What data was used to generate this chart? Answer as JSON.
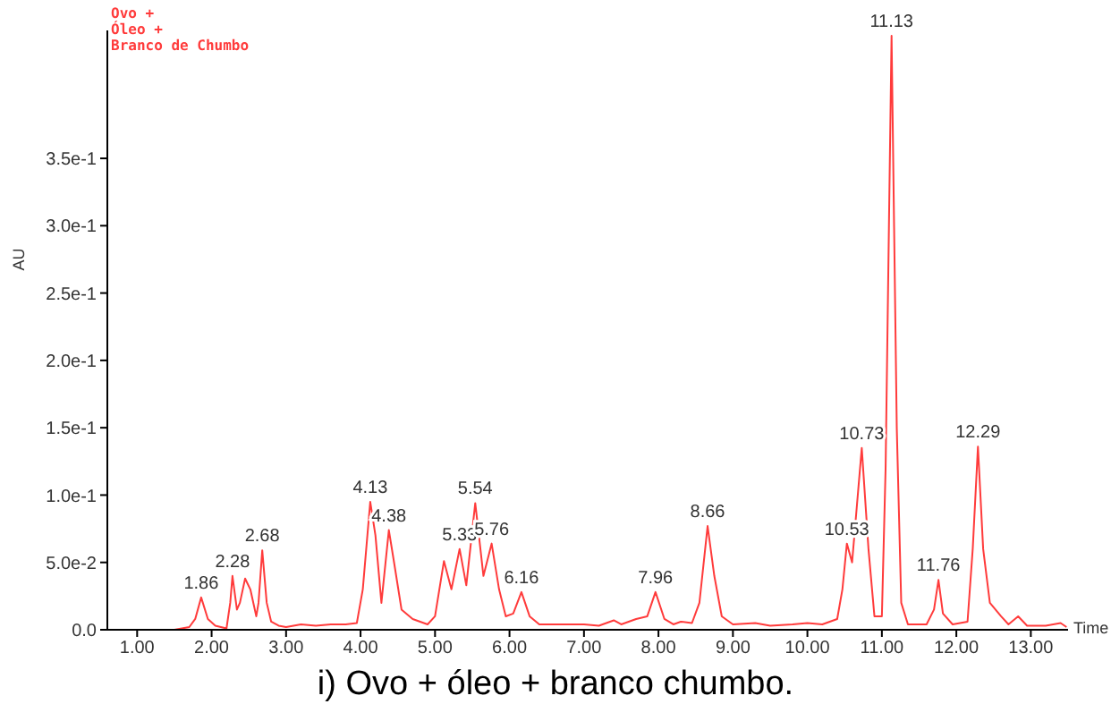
{
  "chart_data": {
    "type": "line",
    "title": "i) Ovo + óleo + branco chumbo.",
    "xlabel": "Time",
    "ylabel": "AU",
    "xlim": [
      0.6,
      13.5
    ],
    "ylim": [
      0,
      0.445
    ],
    "xticks": [
      {
        "value": 1,
        "label": "1.00"
      },
      {
        "value": 2,
        "label": "2.00"
      },
      {
        "value": 3,
        "label": "3.00"
      },
      {
        "value": 4,
        "label": "4.00"
      },
      {
        "value": 5,
        "label": "5.00"
      },
      {
        "value": 6,
        "label": "6.00"
      },
      {
        "value": 7,
        "label": "7.00"
      },
      {
        "value": 8,
        "label": "8.00"
      },
      {
        "value": 9,
        "label": "9.00"
      },
      {
        "value": 10,
        "label": "10.00"
      },
      {
        "value": 11,
        "label": "11.00"
      },
      {
        "value": 12,
        "label": "12.00"
      },
      {
        "value": 13,
        "label": "13.00"
      }
    ],
    "yticks": [
      {
        "value": 0,
        "label": "0.0"
      },
      {
        "value": 0.05,
        "label": "5.0e-2"
      },
      {
        "value": 0.1,
        "label": "1.0e-1"
      },
      {
        "value": 0.15,
        "label": "1.5e-1"
      },
      {
        "value": 0.2,
        "label": "2.0e-1"
      },
      {
        "value": 0.25,
        "label": "2.5e-1"
      },
      {
        "value": 0.3,
        "label": "3.0e-1"
      },
      {
        "value": 0.35,
        "label": "3.5e-1"
      }
    ],
    "grid": false,
    "legend": false,
    "marker": "none",
    "line_style": "solid",
    "series": [
      {
        "name": "Ovo +\nÓleo +\nBranco de Chumbo",
        "color": "#ff3b3b",
        "x": [
          0.6,
          1.0,
          1.5,
          1.7,
          1.78,
          1.86,
          1.95,
          2.05,
          2.2,
          2.25,
          2.28,
          2.34,
          2.38,
          2.45,
          2.52,
          2.6,
          2.63,
          2.68,
          2.74,
          2.8,
          2.9,
          3.0,
          3.2,
          3.4,
          3.6,
          3.8,
          3.95,
          4.03,
          4.13,
          4.2,
          4.28,
          4.38,
          4.45,
          4.55,
          4.7,
          4.9,
          5.0,
          5.12,
          5.22,
          5.33,
          5.42,
          5.54,
          5.65,
          5.76,
          5.86,
          5.95,
          6.05,
          6.16,
          6.27,
          6.4,
          6.6,
          7.0,
          7.2,
          7.4,
          7.5,
          7.7,
          7.85,
          7.96,
          8.08,
          8.2,
          8.3,
          8.45,
          8.55,
          8.66,
          8.75,
          8.85,
          9.0,
          9.3,
          9.5,
          9.8,
          10.0,
          10.2,
          10.4,
          10.47,
          10.53,
          10.6,
          10.73,
          10.82,
          10.9,
          11.0,
          11.05,
          11.13,
          11.2,
          11.26,
          11.35,
          11.6,
          11.7,
          11.76,
          11.82,
          11.95,
          12.15,
          12.22,
          12.29,
          12.36,
          12.45,
          12.6,
          12.7,
          12.83,
          12.95,
          13.2,
          13.4,
          13.48
        ],
        "values": [
          0,
          0,
          0,
          0.002,
          0.008,
          0.024,
          0.008,
          0.003,
          0.001,
          0.02,
          0.04,
          0.015,
          0.02,
          0.038,
          0.03,
          0.01,
          0.02,
          0.059,
          0.02,
          0.006,
          0.003,
          0.002,
          0.004,
          0.003,
          0.004,
          0.004,
          0.005,
          0.03,
          0.095,
          0.07,
          0.02,
          0.074,
          0.05,
          0.015,
          0.008,
          0.004,
          0.01,
          0.051,
          0.03,
          0.06,
          0.033,
          0.094,
          0.04,
          0.064,
          0.03,
          0.01,
          0.012,
          0.028,
          0.01,
          0.004,
          0.004,
          0.004,
          0.003,
          0.007,
          0.004,
          0.008,
          0.01,
          0.028,
          0.008,
          0.004,
          0.006,
          0.005,
          0.02,
          0.077,
          0.04,
          0.01,
          0.004,
          0.005,
          0.003,
          0.004,
          0.005,
          0.004,
          0.008,
          0.03,
          0.064,
          0.05,
          0.135,
          0.06,
          0.01,
          0.01,
          0.12,
          0.441,
          0.15,
          0.02,
          0.004,
          0.004,
          0.015,
          0.037,
          0.012,
          0.004,
          0.006,
          0.06,
          0.136,
          0.06,
          0.02,
          0.01,
          0.004,
          0.01,
          0.003,
          0.003,
          0.005,
          0.002
        ]
      }
    ],
    "annotations": [
      {
        "text": "1.86",
        "x": 1.86,
        "y": 0.024
      },
      {
        "text": "2.28",
        "x": 2.28,
        "y": 0.04
      },
      {
        "text": "2.68",
        "x": 2.68,
        "y": 0.059
      },
      {
        "text": "4.13",
        "x": 4.13,
        "y": 0.095
      },
      {
        "text": "4.38",
        "x": 4.38,
        "y": 0.074
      },
      {
        "text": "5.33",
        "x": 5.33,
        "y": 0.06
      },
      {
        "text": "5.54",
        "x": 5.54,
        "y": 0.094
      },
      {
        "text": "5.76",
        "x": 5.76,
        "y": 0.064
      },
      {
        "text": "6.16",
        "x": 6.16,
        "y": 0.028
      },
      {
        "text": "7.96",
        "x": 7.96,
        "y": 0.028
      },
      {
        "text": "8.66",
        "x": 8.66,
        "y": 0.077
      },
      {
        "text": "10.53",
        "x": 10.53,
        "y": 0.064
      },
      {
        "text": "10.73",
        "x": 10.73,
        "y": 0.135
      },
      {
        "text": "11.13",
        "x": 11.13,
        "y": 0.441
      },
      {
        "text": "11.76",
        "x": 11.76,
        "y": 0.037
      },
      {
        "text": "12.29",
        "x": 12.29,
        "y": 0.136
      }
    ]
  }
}
